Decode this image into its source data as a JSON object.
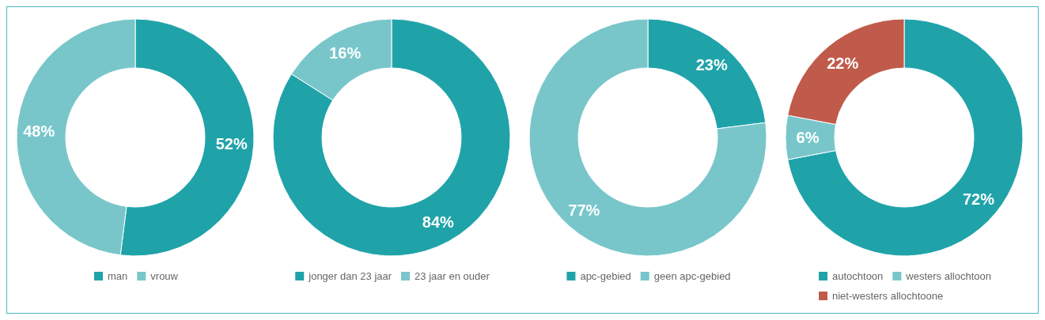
{
  "chart_data": [
    {
      "type": "donut",
      "categories": [
        "man",
        "vrouw"
      ],
      "values": [
        52,
        48
      ],
      "value_labels": [
        "52%",
        "48%"
      ],
      "colors": [
        "#1fa3a9",
        "#78c6ca"
      ],
      "legend": "bottom"
    },
    {
      "type": "donut",
      "categories": [
        "jonger dan 23 jaar",
        "23 jaar en ouder"
      ],
      "values": [
        84,
        16
      ],
      "value_labels": [
        "84%",
        "16%"
      ],
      "colors": [
        "#1fa3a9",
        "#78c6ca"
      ],
      "legend": "bottom"
    },
    {
      "type": "donut",
      "categories": [
        "apc-gebied",
        "geen apc-gebied"
      ],
      "values": [
        23,
        77
      ],
      "value_labels": [
        "23%",
        "77%"
      ],
      "colors": [
        "#1fa3a9",
        "#78c6ca"
      ],
      "legend": "bottom"
    },
    {
      "type": "donut",
      "categories": [
        "autochtoon",
        "westers allochtoon",
        "niet-westers allochtoone"
      ],
      "values": [
        72,
        6,
        22
      ],
      "value_labels": [
        "72%",
        "6%",
        "22%"
      ],
      "colors": [
        "#1fa3a9",
        "#78c6ca",
        "#c05a4b"
      ],
      "legend": "bottom"
    }
  ]
}
